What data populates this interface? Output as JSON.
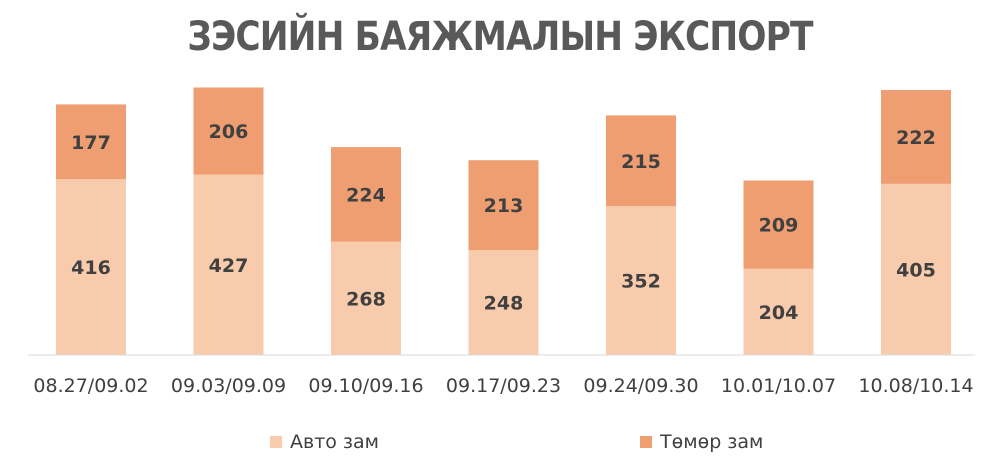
{
  "chart_data": {
    "type": "bar",
    "stacked": true,
    "title": "ЗЭСИЙН БАЯЖМАЛЫН ЭКСПОРТ",
    "categories": [
      "08.27/09.02",
      "09.03/09.09",
      "09.10/09.16",
      "09.17/09.23",
      "09.24/09.30",
      "10.01/10.07",
      "10.08/10.14"
    ],
    "series": [
      {
        "name": "Авто зам",
        "color": "#F8CBAD",
        "values": [
          416,
          427,
          268,
          248,
          352,
          204,
          405
        ]
      },
      {
        "name": "Төмөр зам",
        "color": "#EF9E72",
        "values": [
          177,
          206,
          224,
          213,
          215,
          209,
          222
        ]
      }
    ],
    "ylim": [
      0,
      650
    ],
    "grid": false,
    "legend": "bottom"
  }
}
